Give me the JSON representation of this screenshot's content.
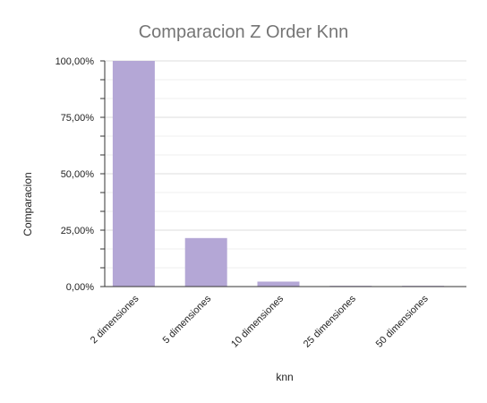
{
  "chart_data": {
    "type": "bar",
    "title": "Comparacion Z Order Knn",
    "xlabel": "knn",
    "ylabel": "Comparacion",
    "categories": [
      "2 dimensiones",
      "5 dimensiones",
      "10 dimensiones",
      "25 dimensiones",
      "50 dimensiones"
    ],
    "series": [
      {
        "values": [
          100.0,
          21.5,
          2.2,
          0.3,
          0.1
        ]
      }
    ],
    "ylim": [
      0,
      100
    ],
    "yticks": [
      0,
      25,
      50,
      75,
      100
    ],
    "ytick_labels": [
      "0,00%",
      "25,00%",
      "50,00%",
      "75,00%",
      "100,00%"
    ],
    "grid": true,
    "legend": "none",
    "colors": {
      "bar": "#b4a7d6",
      "title": "#757575",
      "grid": "#dcdcdc",
      "axis": "#333333",
      "text": "#222222"
    }
  }
}
